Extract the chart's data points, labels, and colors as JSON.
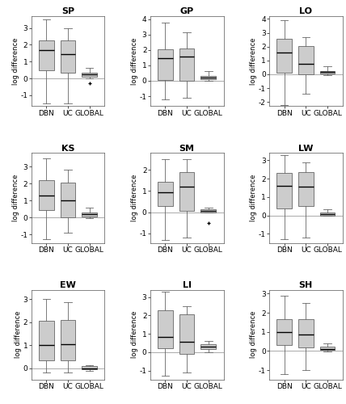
{
  "panels": [
    {
      "title": "SP",
      "ylim": [
        -1.65,
        3.7
      ],
      "yticks": [
        -1,
        0,
        1,
        2,
        3
      ],
      "boxes": [
        {
          "label": "DBN",
          "median": 1.7,
          "q1": 0.5,
          "q3": 2.25,
          "whislo": -1.5,
          "whishi": 3.5,
          "fliers": []
        },
        {
          "label": "UC",
          "median": 1.45,
          "q1": 0.35,
          "q3": 2.25,
          "whislo": -1.5,
          "whishi": 3.0,
          "fliers": []
        },
        {
          "label": "GLOBAL",
          "median": 0.22,
          "q1": 0.08,
          "q3": 0.35,
          "whislo": -0.02,
          "whishi": 0.65,
          "fliers": [
            -0.28
          ]
        }
      ]
    },
    {
      "title": "GP",
      "ylim": [
        -1.65,
        4.2
      ],
      "yticks": [
        -1,
        0,
        1,
        2,
        3,
        4
      ],
      "boxes": [
        {
          "label": "DBN",
          "median": 1.45,
          "q1": 0.05,
          "q3": 2.05,
          "whislo": -1.2,
          "whishi": 3.8,
          "fliers": []
        },
        {
          "label": "UC",
          "median": 1.6,
          "q1": 0.0,
          "q3": 2.1,
          "whislo": -1.1,
          "whishi": 3.15,
          "fliers": []
        },
        {
          "label": "GLOBAL",
          "median": 0.22,
          "q1": 0.08,
          "q3": 0.32,
          "whislo": -0.02,
          "whishi": 0.65,
          "fliers": []
        }
      ]
    },
    {
      "title": "LO",
      "ylim": [
        -2.3,
        4.2
      ],
      "yticks": [
        -2,
        -1,
        0,
        1,
        2,
        3,
        4
      ],
      "boxes": [
        {
          "label": "DBN",
          "median": 1.6,
          "q1": 0.1,
          "q3": 2.55,
          "whislo": -2.2,
          "whishi": 3.9,
          "fliers": []
        },
        {
          "label": "UC",
          "median": 0.75,
          "q1": 0.0,
          "q3": 2.05,
          "whislo": -1.4,
          "whishi": 2.7,
          "fliers": []
        },
        {
          "label": "GLOBAL",
          "median": 0.15,
          "q1": 0.04,
          "q3": 0.22,
          "whislo": -0.05,
          "whishi": 0.6,
          "fliers": []
        }
      ]
    },
    {
      "title": "KS",
      "ylim": [
        -1.5,
        3.8
      ],
      "yticks": [
        -1,
        0,
        1,
        2,
        3
      ],
      "boxes": [
        {
          "label": "DBN",
          "median": 1.3,
          "q1": 0.45,
          "q3": 2.2,
          "whislo": -1.3,
          "whishi": 3.5,
          "fliers": []
        },
        {
          "label": "UC",
          "median": 1.0,
          "q1": 0.0,
          "q3": 2.05,
          "whislo": -0.9,
          "whishi": 2.8,
          "fliers": []
        },
        {
          "label": "GLOBAL",
          "median": 0.18,
          "q1": 0.05,
          "q3": 0.3,
          "whislo": -0.02,
          "whishi": 0.6,
          "fliers": []
        }
      ]
    },
    {
      "title": "SM",
      "ylim": [
        -1.45,
        2.8
      ],
      "yticks": [
        -1,
        0,
        1,
        2
      ],
      "boxes": [
        {
          "label": "DBN",
          "median": 0.95,
          "q1": 0.3,
          "q3": 1.45,
          "whislo": -1.3,
          "whishi": 2.5,
          "fliers": []
        },
        {
          "label": "UC",
          "median": 1.2,
          "q1": 0.05,
          "q3": 1.9,
          "whislo": -1.2,
          "whishi": 2.5,
          "fliers": []
        },
        {
          "label": "GLOBAL",
          "median": 0.05,
          "q1": 0.0,
          "q3": 0.13,
          "whislo": -0.02,
          "whishi": 0.22,
          "fliers": [
            -0.5
          ]
        }
      ]
    },
    {
      "title": "LW",
      "ylim": [
        -1.5,
        3.4
      ],
      "yticks": [
        -1,
        0,
        1,
        2,
        3
      ],
      "boxes": [
        {
          "label": "DBN",
          "median": 1.6,
          "q1": 0.4,
          "q3": 2.3,
          "whislo": -1.3,
          "whishi": 3.3,
          "fliers": []
        },
        {
          "label": "UC",
          "median": 1.55,
          "q1": 0.5,
          "q3": 2.35,
          "whislo": -1.2,
          "whishi": 2.9,
          "fliers": []
        },
        {
          "label": "GLOBAL",
          "median": 0.07,
          "q1": 0.0,
          "q3": 0.15,
          "whislo": -0.02,
          "whishi": 0.35,
          "fliers": []
        }
      ]
    },
    {
      "title": "EW",
      "ylim": [
        -0.5,
        3.4
      ],
      "yticks": [
        0,
        1,
        2,
        3
      ],
      "boxes": [
        {
          "label": "DBN",
          "median": 1.0,
          "q1": 0.35,
          "q3": 2.05,
          "whislo": -0.2,
          "whishi": 3.0,
          "fliers": []
        },
        {
          "label": "UC",
          "median": 1.05,
          "q1": 0.35,
          "q3": 2.1,
          "whislo": -0.2,
          "whishi": 2.85,
          "fliers": []
        },
        {
          "label": "GLOBAL",
          "median": 0.0,
          "q1": -0.04,
          "q3": 0.08,
          "whislo": -0.1,
          "whishi": 0.12,
          "fliers": []
        }
      ]
    },
    {
      "title": "LI",
      "ylim": [
        -1.5,
        3.4
      ],
      "yticks": [
        -1,
        0,
        1,
        2,
        3
      ],
      "boxes": [
        {
          "label": "DBN",
          "median": 0.85,
          "q1": 0.2,
          "q3": 2.3,
          "whislo": -1.3,
          "whishi": 3.3,
          "fliers": []
        },
        {
          "label": "UC",
          "median": 0.55,
          "q1": -0.1,
          "q3": 2.05,
          "whislo": -1.1,
          "whishi": 2.5,
          "fliers": []
        },
        {
          "label": "GLOBAL",
          "median": 0.3,
          "q1": 0.15,
          "q3": 0.42,
          "whislo": -0.02,
          "whishi": 0.6,
          "fliers": []
        }
      ]
    },
    {
      "title": "SH",
      "ylim": [
        -1.5,
        3.2
      ],
      "yticks": [
        -1,
        0,
        1,
        2,
        3
      ],
      "boxes": [
        {
          "label": "DBN",
          "median": 1.0,
          "q1": 0.3,
          "q3": 1.65,
          "whislo": -1.2,
          "whishi": 2.9,
          "fliers": []
        },
        {
          "label": "UC",
          "median": 0.85,
          "q1": 0.2,
          "q3": 1.65,
          "whislo": -1.0,
          "whishi": 2.5,
          "fliers": []
        },
        {
          "label": "GLOBAL",
          "median": 0.12,
          "q1": 0.05,
          "q3": 0.22,
          "whislo": -0.02,
          "whishi": 0.38,
          "fliers": []
        }
      ]
    }
  ],
  "box_color": "#cccccc",
  "box_edge_color": "#666666",
  "median_color": "#000000",
  "whisker_color": "#666666",
  "flier_color": "#555555",
  "zeroline_color": "#aaaaaa",
  "ylabel": "log difference",
  "xlabel_labels": [
    "DBN",
    "UC",
    "GLOBAL"
  ],
  "title_fontsize": 8,
  "label_fontsize": 6,
  "tick_fontsize": 6.5
}
